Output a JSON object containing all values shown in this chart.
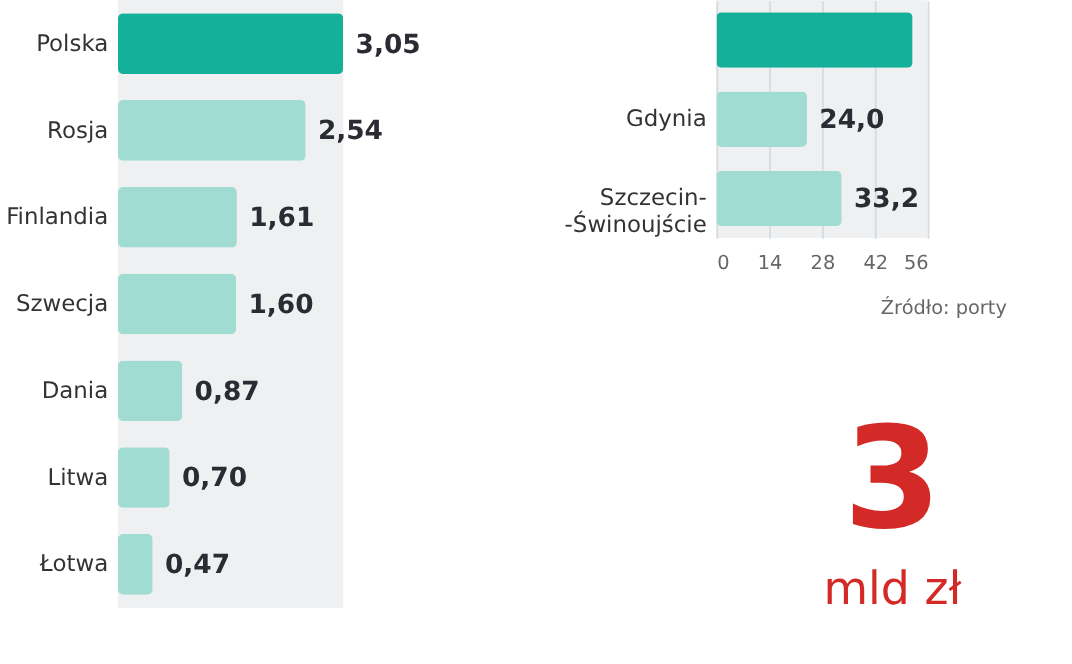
{
  "chart_data": [
    {
      "type": "bar",
      "orientation": "horizontal",
      "categories": [
        "Polska",
        "Rosja",
        "Finlandia",
        "Szwecja",
        "Dania",
        "Litwa",
        "Łotwa"
      ],
      "values": [
        3.05,
        2.54,
        1.61,
        1.6,
        0.87,
        0.7,
        0.47
      ],
      "value_labels": [
        "3,05",
        "2,54",
        "1,61",
        "1,60",
        "0,87",
        "0,70",
        "0,47"
      ],
      "colors": [
        "#14b09a",
        "#a0dcd2",
        "#a0dcd2",
        "#a0dcd2",
        "#a0dcd2",
        "#a0dcd2",
        "#a0dcd2"
      ]
    },
    {
      "type": "bar",
      "orientation": "horizontal",
      "categories": [
        null,
        "Gdynia",
        "Szczecin-\n-Świnoujście"
      ],
      "values": [
        52,
        24.0,
        33.2
      ],
      "value_labels": [
        null,
        "24,0",
        "33,2"
      ],
      "colors": [
        "#14b09a",
        "#a0dcd2",
        "#a0dcd2"
      ],
      "xlim": [
        0,
        56
      ],
      "xticks": [
        0,
        14,
        28,
        42,
        56
      ],
      "grid": "x",
      "annotations": [
        "Źródło: porty"
      ]
    },
    {
      "type": "other",
      "annotations": [
        "3",
        "mld zł"
      ]
    }
  ]
}
